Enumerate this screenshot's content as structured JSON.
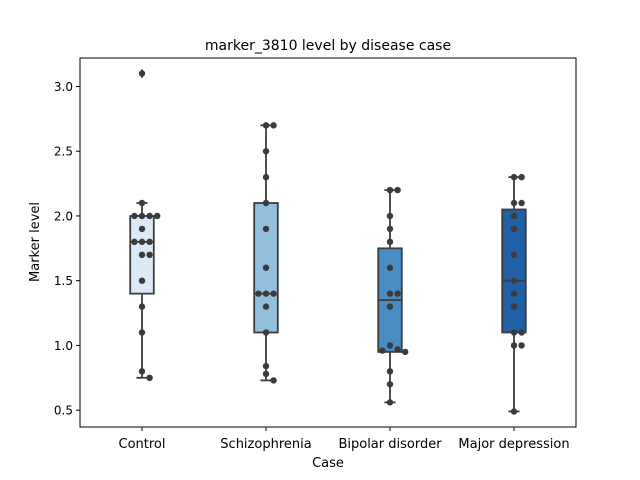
{
  "chart_data": {
    "type": "box",
    "title": "marker_3810 level by disease case",
    "xlabel": "Case",
    "ylabel": "Marker level",
    "ylim": [
      0.37,
      3.22
    ],
    "yticks": [
      0.5,
      1.0,
      1.5,
      2.0,
      2.5,
      3.0
    ],
    "ytick_labels": [
      "0.5",
      "1.0",
      "1.5",
      "2.0",
      "2.5",
      "3.0"
    ],
    "categories": [
      "Control",
      "Schizophrenia",
      "Bipolar disorder",
      "Major depression"
    ],
    "colors": [
      "#dce9f6",
      "#94c0df",
      "#4a8cc4",
      "#2061a6"
    ],
    "grid": false,
    "boxes": [
      {
        "q1": 1.4,
        "median": 1.8,
        "q3": 2.0,
        "whisker_low": 0.75,
        "whisker_high": 2.1,
        "outliers": [
          3.1
        ]
      },
      {
        "q1": 1.1,
        "median": 1.4,
        "q3": 2.1,
        "whisker_low": 0.73,
        "whisker_high": 2.7,
        "outliers": []
      },
      {
        "q1": 0.95,
        "median": 1.35,
        "q3": 1.75,
        "whisker_low": 0.56,
        "whisker_high": 2.2,
        "outliers": []
      },
      {
        "q1": 1.1,
        "median": 1.5,
        "q3": 2.05,
        "whisker_low": 0.49,
        "whisker_high": 2.3,
        "outliers": []
      }
    ],
    "points": [
      [
        3.1,
        2.1,
        2.0,
        2.0,
        2.0,
        2.0,
        1.9,
        1.8,
        1.8,
        1.8,
        1.7,
        1.7,
        1.5,
        1.3,
        1.1,
        0.8,
        0.75
      ],
      [
        2.7,
        2.7,
        2.5,
        2.3,
        2.1,
        1.9,
        1.6,
        1.4,
        1.4,
        1.4,
        1.3,
        1.1,
        0.84,
        0.78,
        0.73
      ],
      [
        2.2,
        2.2,
        2.0,
        1.9,
        1.8,
        1.6,
        1.4,
        1.4,
        1.3,
        1.0,
        0.97,
        0.96,
        0.95,
        0.8,
        0.7,
        0.56
      ],
      [
        2.3,
        2.3,
        2.1,
        2.1,
        2.0,
        1.9,
        1.7,
        1.5,
        1.4,
        1.3,
        1.1,
        1.1,
        1.0,
        1.0,
        0.49
      ]
    ]
  }
}
